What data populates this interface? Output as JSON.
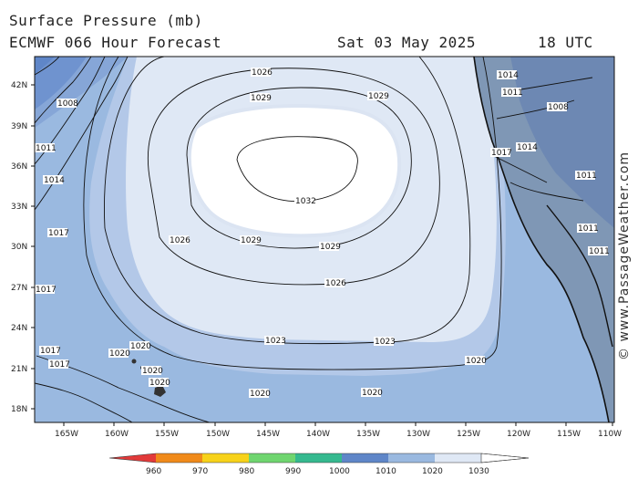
{
  "title": {
    "line1": "Surface Pressure (mb)",
    "line2": "ECMWF 066 Hour Forecast",
    "date": "Sat 03 May 2025",
    "time": "18 UTC"
  },
  "watermark": "© www.PassageWeather.com",
  "axes": {
    "lat_labels": [
      "42N",
      "39N",
      "36N",
      "33N",
      "30N",
      "27N",
      "24N",
      "21N",
      "18N"
    ],
    "lon_labels": [
      "165W",
      "160W",
      "155W",
      "150W",
      "145W",
      "140W",
      "135W",
      "130W",
      "125W",
      "120W",
      "115W",
      "110W"
    ]
  },
  "contours": [
    {
      "value": "1008",
      "label": "1008"
    },
    {
      "value": "1011",
      "label": "1011"
    },
    {
      "value": "1014",
      "label": "1014"
    },
    {
      "value": "1017",
      "label": "1017"
    },
    {
      "value": "1020",
      "label": "1020"
    },
    {
      "value": "1023",
      "label": "1023"
    },
    {
      "value": "1026",
      "label": "1026"
    },
    {
      "value": "1029",
      "label": "1029"
    },
    {
      "value": "1032",
      "label": "1032"
    }
  ],
  "colorbar": {
    "ticks": [
      "960",
      "970",
      "980",
      "990",
      "1000",
      "1010",
      "1020",
      "1030"
    ],
    "colors": [
      "#e23a3a",
      "#f08a1a",
      "#f7d21a",
      "#6fd56f",
      "#35b98f",
      "#5f86c8",
      "#9ab9e0",
      "#dfe8f5"
    ]
  },
  "colors": {
    "land": "#8fa2b8",
    "p1008": "#5f86c8",
    "p1014": "#86a6d7",
    "p1020": "#b3c8e8",
    "p1026": "#dfe8f5",
    "p1030": "#ffffff"
  }
}
